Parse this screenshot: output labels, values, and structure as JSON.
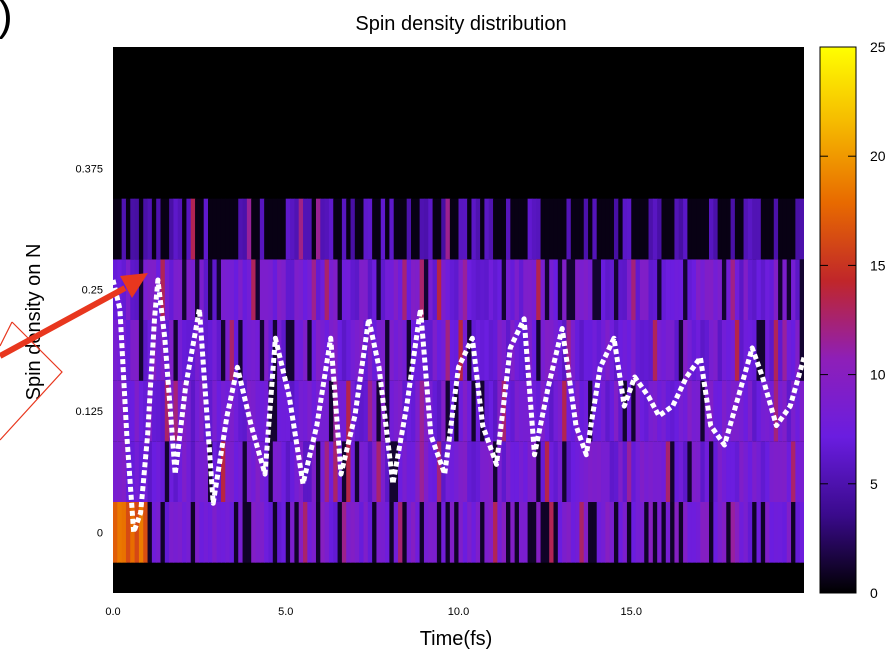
{
  "chart_data": {
    "type": "heatmap",
    "title": "Spin density distribution",
    "xlabel": "Time(fs)",
    "ylabel": "Spin density on N",
    "panel_label": ")",
    "xlim": [
      0.0,
      20.0
    ],
    "ylim": [
      -0.0625,
      0.5
    ],
    "x_ticks": [
      {
        "value": 0.0,
        "label": "0.0"
      },
      {
        "value": 5.0,
        "label": "5.0"
      },
      {
        "value": 10.0,
        "label": "10.0"
      },
      {
        "value": 15.0,
        "label": "15.0"
      }
    ],
    "y_ticks": [
      {
        "value": 0.0,
        "label": "0"
      },
      {
        "value": 0.125,
        "label": "0.125"
      },
      {
        "value": 0.25,
        "label": "0.25"
      },
      {
        "value": 0.375,
        "label": "0.375"
      }
    ],
    "colorbar": {
      "min": 0,
      "max": 25,
      "ticks": [
        {
          "value": 0,
          "label": "0"
        },
        {
          "value": 5,
          "label": "5"
        },
        {
          "value": 10,
          "label": "10"
        },
        {
          "value": 15,
          "label": "15"
        },
        {
          "value": 20,
          "label": "20"
        },
        {
          "value": 25,
          "label": "25"
        }
      ],
      "colormap": [
        "#000000",
        "#3a0a8c",
        "#6a1de0",
        "#8e1fb8",
        "#c0262a",
        "#e86a00",
        "#f5b800",
        "#ffff00"
      ]
    },
    "grid": false,
    "legend": "none",
    "heatmap_bins_y": [
      0.0,
      0.0625,
      0.125,
      0.1875,
      0.25,
      0.3125
    ],
    "mean_curve": {
      "style": "dashed-white",
      "x": [
        0.0,
        0.2,
        0.4,
        0.6,
        0.8,
        1.0,
        1.2,
        1.3,
        1.5,
        1.8,
        2.1,
        2.5,
        2.9,
        3.3,
        3.6,
        4.0,
        4.4,
        4.7,
        5.1,
        5.5,
        5.9,
        6.3,
        6.6,
        7.0,
        7.4,
        7.7,
        8.1,
        8.5,
        8.9,
        9.2,
        9.6,
        10.0,
        10.4,
        10.7,
        11.1,
        11.5,
        11.9,
        12.2,
        12.6,
        13.0,
        13.4,
        13.7,
        14.1,
        14.5,
        14.8,
        15.1,
        15.5,
        15.8,
        16.2,
        16.6,
        17.0,
        17.3,
        17.7,
        18.1,
        18.5,
        18.8,
        19.2,
        19.6,
        20.0
      ],
      "y": [
        0.26,
        0.23,
        0.1,
        0.0,
        0.02,
        0.1,
        0.22,
        0.26,
        0.2,
        0.06,
        0.15,
        0.23,
        0.03,
        0.12,
        0.17,
        0.11,
        0.06,
        0.2,
        0.14,
        0.05,
        0.11,
        0.2,
        0.06,
        0.12,
        0.22,
        0.17,
        0.05,
        0.13,
        0.23,
        0.1,
        0.06,
        0.17,
        0.2,
        0.11,
        0.07,
        0.19,
        0.22,
        0.08,
        0.15,
        0.21,
        0.11,
        0.08,
        0.17,
        0.2,
        0.13,
        0.16,
        0.14,
        0.12,
        0.13,
        0.16,
        0.18,
        0.11,
        0.09,
        0.14,
        0.19,
        0.16,
        0.11,
        0.13,
        0.18
      ]
    },
    "annotation_arrow": {
      "color": "#e8371e",
      "to_x": 1.2,
      "to_y": 0.25
    }
  }
}
